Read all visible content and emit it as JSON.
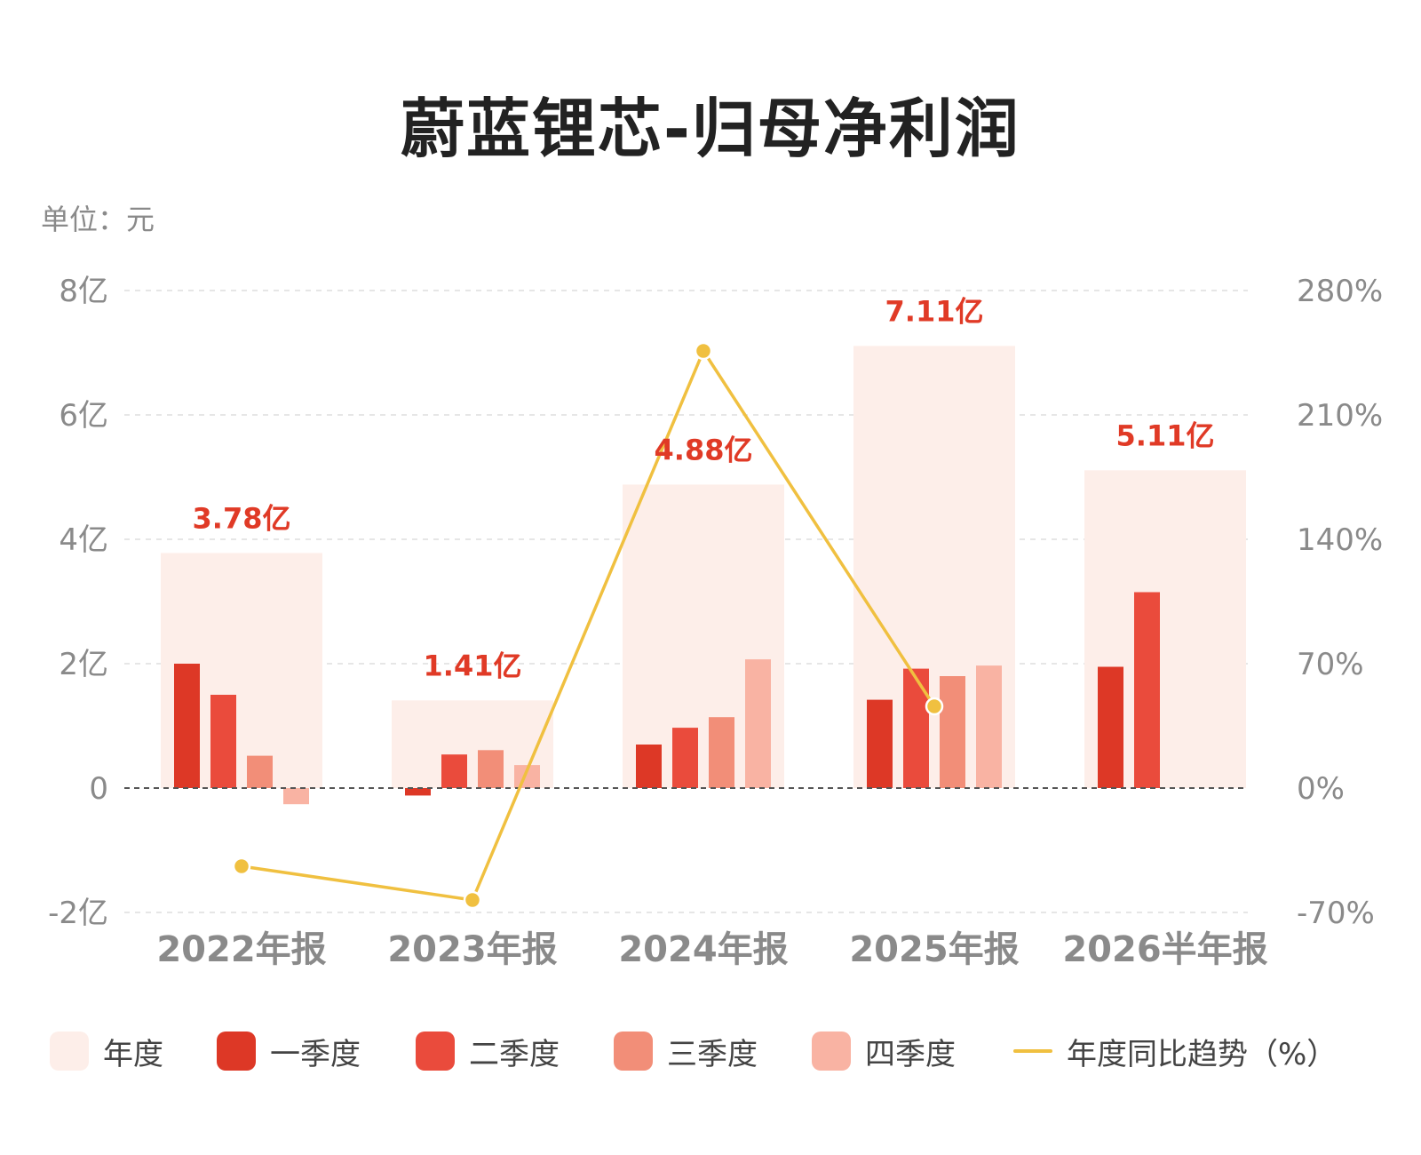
{
  "chart_title": "蔚蓝锂芯-归母净利润",
  "unit_label": "单位：元",
  "colors": {
    "annual": "#fdeee9",
    "q1": "#dd3826",
    "q2": "#ea4b3c",
    "q3": "#f28e78",
    "q4": "#f9b3a3",
    "line": "#f0c040",
    "label": "#e03a26",
    "axis_text": "#8a8a8a"
  },
  "legend": [
    {
      "label": "年度",
      "color_key": "annual",
      "kind": "swatch"
    },
    {
      "label": "一季度",
      "color_key": "q1",
      "kind": "swatch"
    },
    {
      "label": "二季度",
      "color_key": "q2",
      "kind": "swatch"
    },
    {
      "label": "三季度",
      "color_key": "q3",
      "kind": "swatch"
    },
    {
      "label": "四季度",
      "color_key": "q4",
      "kind": "swatch"
    },
    {
      "label": "年度同比趋势（%）",
      "color_key": "line",
      "kind": "line"
    }
  ],
  "chart_data": {
    "type": "bar",
    "categories": [
      "2022年报",
      "2023年报",
      "2024年报",
      "2025年报",
      "2026半年报"
    ],
    "annual_labels": [
      "3.78亿",
      "1.41亿",
      "4.88亿",
      "7.11亿",
      "5.11亿"
    ],
    "series": [
      {
        "name": "年度",
        "values": [
          3.78,
          1.41,
          4.88,
          7.11,
          5.11
        ]
      },
      {
        "name": "一季度",
        "values": [
          2.0,
          -0.12,
          0.7,
          1.42,
          1.95
        ]
      },
      {
        "name": "二季度",
        "values": [
          1.5,
          0.54,
          0.97,
          1.92,
          3.15
        ]
      },
      {
        "name": "三季度",
        "values": [
          0.52,
          0.61,
          1.14,
          1.8,
          null
        ]
      },
      {
        "name": "四季度",
        "values": [
          -0.26,
          0.37,
          2.07,
          1.97,
          null
        ]
      }
    ],
    "trend": {
      "name": "年度同比趋势（%）",
      "values": [
        -44,
        -63,
        246,
        46,
        null
      ]
    },
    "y_left": {
      "min": -2,
      "max": 8,
      "ticks": [
        -2,
        0,
        2,
        4,
        6,
        8
      ],
      "tick_labels": [
        "-2亿",
        "0",
        "2亿",
        "4亿",
        "6亿",
        "8亿"
      ]
    },
    "y_right": {
      "min": -70,
      "max": 280,
      "ticks": [
        -70,
        0,
        70,
        140,
        210,
        280
      ],
      "tick_labels": [
        "-70%",
        "0%",
        "70%",
        "140%",
        "210%",
        "280%"
      ]
    },
    "grid": true
  }
}
